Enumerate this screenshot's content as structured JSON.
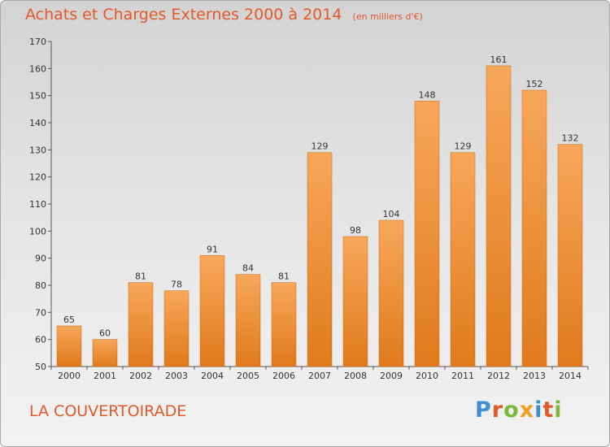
{
  "chart_data": {
    "type": "bar",
    "title": "Achats et Charges Externes 2000 à 2014",
    "subtitle": "(en milliers d'€)",
    "categories": [
      "2000",
      "2001",
      "2002",
      "2003",
      "2004",
      "2005",
      "2006",
      "2007",
      "2008",
      "2009",
      "2010",
      "2011",
      "2012",
      "2013",
      "2014"
    ],
    "values": [
      65,
      60,
      81,
      78,
      91,
      84,
      81,
      129,
      98,
      104,
      148,
      129,
      161,
      152,
      132
    ],
    "ylim": [
      50,
      170
    ],
    "yticks": [
      50,
      60,
      70,
      80,
      90,
      100,
      110,
      120,
      130,
      140,
      150,
      160,
      170
    ],
    "grid": false,
    "data_labels": true,
    "bar_color_light": "#f7a75a",
    "bar_color_dark": "#e07a1c",
    "bar_border": "#c86a14"
  },
  "commune": "LA COUVERTOIRADE",
  "logo": {
    "text": "Proxiti",
    "letter_colors": [
      "#3f8fd0",
      "#e05a2a",
      "#7ab83a",
      "#f0a020",
      "#3f8fd0",
      "#e05a2a",
      "#7ab83a"
    ]
  },
  "colors": {
    "title": "#e05a2a",
    "axis": "#555555",
    "text": "#333333"
  }
}
